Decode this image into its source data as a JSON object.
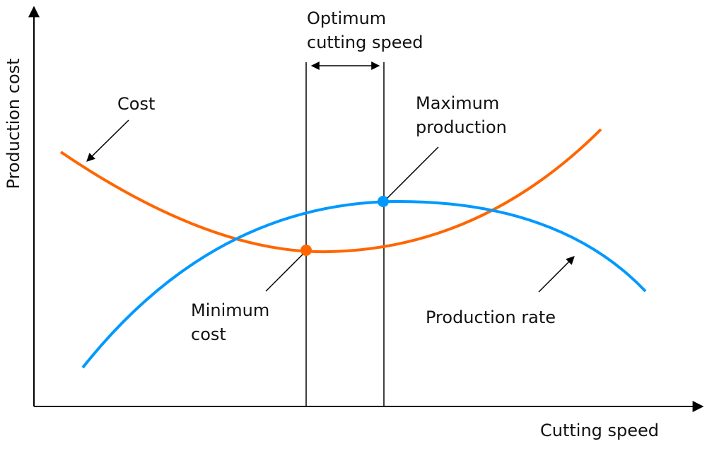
{
  "axes": {
    "y_label": "Production cost",
    "x_label": "Cutting speed"
  },
  "labels": {
    "optimum_line1": "Optimum",
    "optimum_line2": "cutting speed",
    "cost": "Cost",
    "max_line1": "Maximum",
    "max_line2": "production",
    "min_line1": "Minimum",
    "min_line2": "cost",
    "production_rate": "Production rate"
  },
  "colors": {
    "cost_curve": "#FF6600",
    "production_curve": "#0099FF",
    "lines": "#000000"
  }
}
